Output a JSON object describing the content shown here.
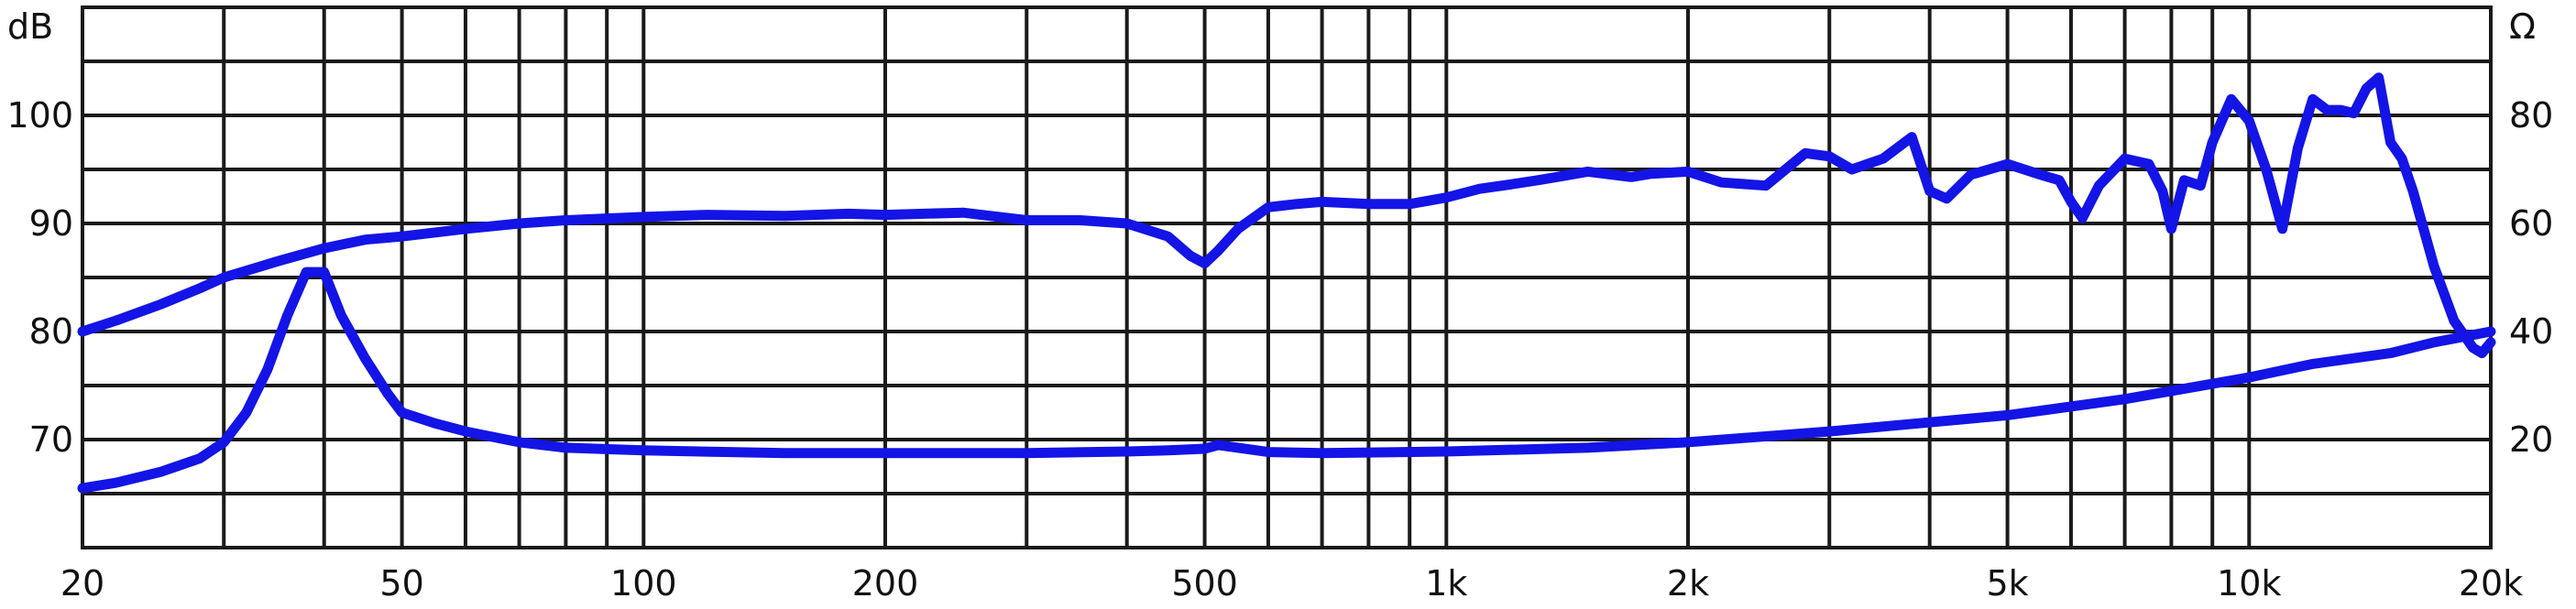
{
  "chart_data": {
    "type": "line",
    "title": "",
    "x_scale": "log",
    "xlim": [
      20,
      20000
    ],
    "x_tick_labels": [
      {
        "value": 20,
        "label": "20"
      },
      {
        "value": 50,
        "label": "50"
      },
      {
        "value": 100,
        "label": "100"
      },
      {
        "value": 200,
        "label": "200"
      },
      {
        "value": 500,
        "label": "500"
      },
      {
        "value": 1000,
        "label": "1k"
      },
      {
        "value": 2000,
        "label": "2k"
      },
      {
        "value": 5000,
        "label": "5k"
      },
      {
        "value": 10000,
        "label": "10k"
      },
      {
        "value": 20000,
        "label": "20k"
      }
    ],
    "y_left": {
      "unit": "dB",
      "lim": [
        60,
        110
      ],
      "tick_labels": [
        {
          "value": 70,
          "label": "70"
        },
        {
          "value": 80,
          "label": "80"
        },
        {
          "value": 90,
          "label": "90"
        },
        {
          "value": 100,
          "label": "100"
        }
      ]
    },
    "y_right": {
      "unit": "Ω",
      "lim": [
        0,
        100
      ],
      "tick_labels": [
        {
          "value": 20,
          "label": "20"
        },
        {
          "value": 40,
          "label": "40"
        },
        {
          "value": 60,
          "label": "60"
        },
        {
          "value": 80,
          "label": "80"
        }
      ]
    },
    "grid": true,
    "line_color": "#1414e6",
    "series": [
      {
        "axis": "left",
        "x": [
          20,
          22,
          25,
          28,
          30,
          35,
          40,
          45,
          50,
          60,
          70,
          80,
          100,
          120,
          150,
          180,
          200,
          250,
          300,
          350,
          400,
          420,
          450,
          480,
          500,
          520,
          550,
          600,
          650,
          700,
          800,
          900,
          1000,
          1100,
          1200,
          1300,
          1400,
          1500,
          1700,
          1800,
          2000,
          2200,
          2500,
          2800,
          3000,
          3200,
          3500,
          3800,
          4000,
          4200,
          4500,
          5000,
          5500,
          5800,
          6000,
          6200,
          6500,
          7000,
          7500,
          7800,
          8000,
          8300,
          8700,
          9000,
          9500,
          10000,
          10500,
          11000,
          11500,
          12000,
          12500,
          13000,
          13500,
          14000,
          14500,
          15000,
          15500,
          16000,
          17000,
          18000,
          19000,
          19500,
          20000
        ],
        "y": [
          80,
          81,
          82.5,
          84,
          85,
          86.5,
          87.7,
          88.5,
          88.8,
          89.5,
          90,
          90.3,
          90.6,
          90.8,
          90.7,
          90.9,
          90.8,
          91,
          90.3,
          90.3,
          90,
          89.5,
          88.8,
          87,
          86.3,
          87.5,
          89.5,
          91.5,
          91.8,
          92,
          91.8,
          91.8,
          92.4,
          93.2,
          93.6,
          94,
          94.4,
          94.8,
          94.3,
          94.6,
          94.8,
          93.8,
          93.5,
          96.5,
          96.2,
          95,
          96,
          98,
          93,
          92.3,
          94.5,
          95.5,
          94.5,
          94,
          92,
          90.5,
          93.5,
          96,
          95.5,
          93,
          89.5,
          94,
          93.5,
          97.5,
          101.5,
          99.5,
          95,
          89.5,
          97,
          101.5,
          100.5,
          100.5,
          100.2,
          102.5,
          103.5,
          97.5,
          96,
          93,
          86,
          81,
          78.5,
          78,
          79
        ]
      },
      {
        "axis": "right",
        "x": [
          20,
          22,
          25,
          28,
          30,
          32,
          34,
          36,
          38,
          40,
          42,
          45,
          48,
          50,
          55,
          60,
          70,
          80,
          100,
          150,
          200,
          300,
          400,
          450,
          500,
          520,
          550,
          600,
          700,
          1000,
          1500,
          2000,
          3000,
          5000,
          7000,
          8000,
          10000,
          12000,
          15000,
          17000,
          20000
        ],
        "y": [
          11,
          12,
          14,
          16.5,
          19.5,
          25,
          33,
          43,
          51,
          51,
          43,
          35,
          28.5,
          25,
          23,
          21.5,
          19.5,
          18.5,
          18,
          17.5,
          17.5,
          17.5,
          17.8,
          18,
          18.3,
          19,
          18.5,
          17.7,
          17.5,
          17.8,
          18.5,
          19.5,
          21.5,
          24.5,
          27.5,
          29,
          31.5,
          34,
          36,
          38,
          40
        ]
      }
    ]
  }
}
